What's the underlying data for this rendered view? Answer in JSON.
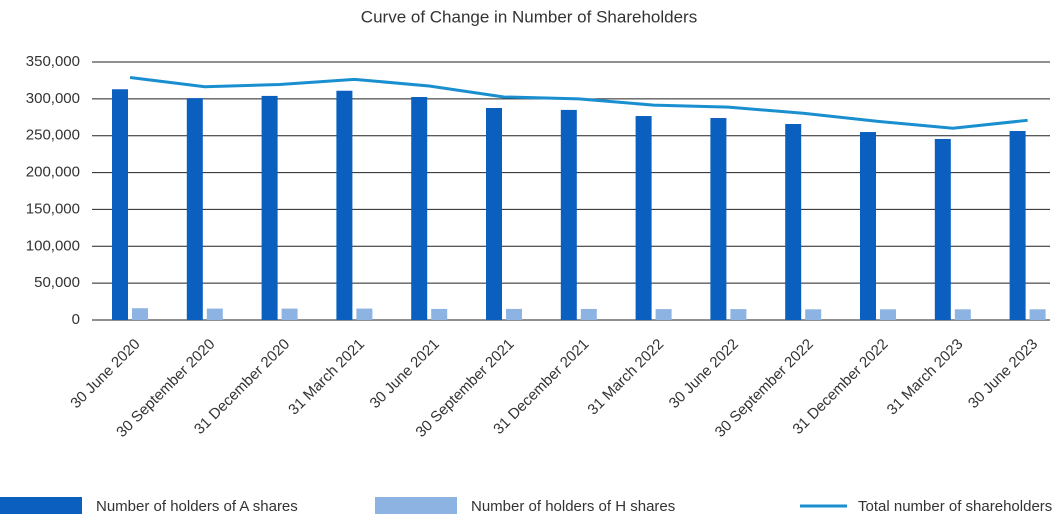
{
  "chart_data": {
    "type": "bar_line",
    "title": "Curve of Change in Number of Shareholders",
    "categories": [
      "30 June 2020",
      "30 September 2020",
      "31 December 2020",
      "31 March 2021",
      "30 June 2021",
      "30 September 2021",
      "31 December 2021",
      "31 March 2022",
      "30 June 2022",
      "30 September 2022",
      "31 December 2022",
      "31 March 2023",
      "30 June 2023"
    ],
    "series": [
      {
        "name": "Number of holders of A shares",
        "kind": "bar",
        "color": "#0a5fbf",
        "values": [
          313000,
          301000,
          304000,
          311000,
          302500,
          287600,
          285000,
          276700,
          274000,
          265900,
          255000,
          245600,
          256400
        ]
      },
      {
        "name": "Number of holders of H shares",
        "kind": "bar",
        "color": "#8db3e2",
        "values": [
          16000,
          15500,
          15500,
          15500,
          15000,
          15000,
          15000,
          14800,
          14800,
          14500,
          14500,
          14500,
          14500
        ]
      },
      {
        "name": "Total number of shareholders",
        "kind": "line",
        "color": "#1a8fd0",
        "values": [
          329000,
          316500,
          319500,
          326500,
          317500,
          302600,
          300000,
          291500,
          288800,
          280400,
          269500,
          260100,
          270900
        ]
      }
    ],
    "ylim": [
      0,
      350000
    ],
    "yticks": [
      0,
      {
        "value": 50000,
        "label": "50,000"
      },
      {
        "value": 100000,
        "label": "100,000"
      },
      {
        "value": 150000,
        "label": "150,000"
      },
      {
        "value": 200000,
        "label": "200,000"
      },
      {
        "value": 250000,
        "label": "250,000"
      },
      {
        "value": 300000,
        "label": "300,000"
      },
      {
        "value": 350000,
        "label": "350,000"
      }
    ],
    "grid": true
  }
}
